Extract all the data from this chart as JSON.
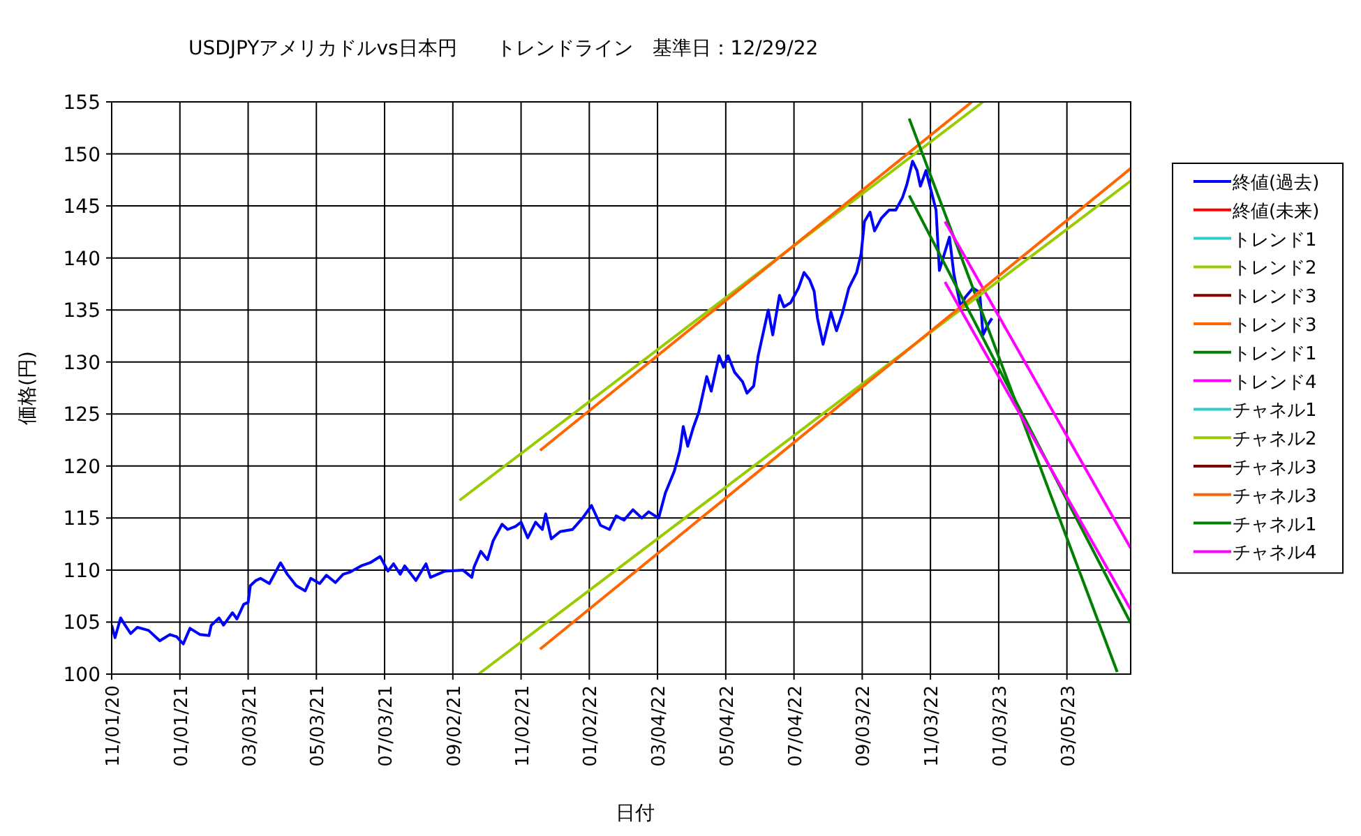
{
  "chart_data": {
    "type": "line",
    "title": "USDJPYアメリカドルvs日本円　　トレンドライン　基準日：12/29/22",
    "xlabel": "日付",
    "ylabel": "価格(円)",
    "grid": true,
    "legend": "right",
    "marker": "none",
    "line_style": "solid",
    "xlim": [
      "2020-11-01",
      "2023-05-01"
    ],
    "ylim": [
      100,
      155
    ],
    "yticks": [
      100,
      105,
      110,
      115,
      120,
      125,
      130,
      135,
      140,
      145,
      150,
      155
    ],
    "xticks": [
      {
        "value": "2020-11-01",
        "label": "11/01/20"
      },
      {
        "value": "2021-01-01",
        "label": "01/01/21"
      },
      {
        "value": "2021-03-03",
        "label": "03/03/21"
      },
      {
        "value": "2021-05-03",
        "label": "05/03/21"
      },
      {
        "value": "2021-07-03",
        "label": "07/03/21"
      },
      {
        "value": "2021-09-02",
        "label": "09/02/21"
      },
      {
        "value": "2021-11-02",
        "label": "11/02/21"
      },
      {
        "value": "2022-01-02",
        "label": "01/02/22"
      },
      {
        "value": "2022-03-04",
        "label": "03/04/22"
      },
      {
        "value": "2022-05-04",
        "label": "05/04/22"
      },
      {
        "value": "2022-07-04",
        "label": "07/04/22"
      },
      {
        "value": "2022-09-03",
        "label": "09/03/22"
      },
      {
        "value": "2022-11-03",
        "label": "11/03/22"
      },
      {
        "value": "2023-01-03",
        "label": "01/03/23"
      },
      {
        "value": "2023-03-05",
        "label": "03/05/23"
      }
    ],
    "series": [
      {
        "name": "終値(過去)",
        "color": "#0000ff",
        "x": [
          "2020-11-01",
          "2020-11-04",
          "2020-11-09",
          "2020-11-13",
          "2020-11-18",
          "2020-11-24",
          "2020-12-04",
          "2020-12-14",
          "2020-12-23",
          "2020-12-29",
          "2021-01-04",
          "2021-01-10",
          "2021-01-19",
          "2021-01-27",
          "2021-01-29",
          "2021-02-05",
          "2021-02-09",
          "2021-02-17",
          "2021-02-21",
          "2021-02-27",
          "2021-03-03",
          "2021-03-05",
          "2021-03-10",
          "2021-03-14",
          "2021-03-22",
          "2021-04-01",
          "2021-04-07",
          "2021-04-15",
          "2021-04-23",
          "2021-04-28",
          "2021-05-06",
          "2021-05-12",
          "2021-05-20",
          "2021-05-27",
          "2021-06-02",
          "2021-06-12",
          "2021-06-20",
          "2021-06-29",
          "2021-07-06",
          "2021-07-11",
          "2021-07-17",
          "2021-07-21",
          "2021-07-31",
          "2021-08-09",
          "2021-08-13",
          "2021-08-26",
          "2021-09-11",
          "2021-09-19",
          "2021-09-21",
          "2021-09-27",
          "2021-10-03",
          "2021-10-08",
          "2021-10-16",
          "2021-10-21",
          "2021-10-28",
          "2021-11-02",
          "2021-11-08",
          "2021-11-15",
          "2021-11-21",
          "2021-11-24",
          "2021-11-29",
          "2021-12-07",
          "2021-12-18",
          "2021-12-27",
          "2022-01-04",
          "2022-01-12",
          "2022-01-20",
          "2022-01-26",
          "2022-02-02",
          "2022-02-10",
          "2022-02-18",
          "2022-02-24",
          "2022-03-05",
          "2022-03-11",
          "2022-03-19",
          "2022-03-24",
          "2022-03-27",
          "2022-03-31",
          "2022-04-05",
          "2022-04-10",
          "2022-04-17",
          "2022-04-21",
          "2022-04-28",
          "2022-05-02",
          "2022-05-06",
          "2022-05-12",
          "2022-05-19",
          "2022-05-23",
          "2022-05-29",
          "2022-06-02",
          "2022-06-11",
          "2022-06-15",
          "2022-06-21",
          "2022-06-25",
          "2022-07-01",
          "2022-07-08",
          "2022-07-13",
          "2022-07-18",
          "2022-07-22",
          "2022-07-25",
          "2022-07-30",
          "2022-08-06",
          "2022-08-11",
          "2022-08-16",
          "2022-08-22",
          "2022-08-29",
          "2022-09-02",
          "2022-09-05",
          "2022-09-10",
          "2022-09-14",
          "2022-09-20",
          "2022-09-27",
          "2022-10-03",
          "2022-10-09",
          "2022-10-13",
          "2022-10-18",
          "2022-10-22",
          "2022-10-25",
          "2022-10-30",
          "2022-11-03",
          "2022-11-08",
          "2022-11-11",
          "2022-11-16",
          "2022-11-20",
          "2022-11-24",
          "2022-11-30",
          "2022-12-04",
          "2022-12-11",
          "2022-12-17",
          "2022-12-20",
          "2022-12-25",
          "2022-12-28"
        ],
        "values": [
          104.7,
          103.5,
          105.4,
          104.7,
          103.9,
          104.5,
          104.2,
          103.2,
          103.8,
          103.6,
          102.9,
          104.4,
          103.8,
          103.7,
          104.7,
          105.4,
          104.7,
          105.9,
          105.3,
          106.7,
          106.9,
          108.5,
          109.0,
          109.2,
          108.7,
          110.7,
          109.6,
          108.5,
          108.0,
          109.2,
          108.7,
          109.5,
          108.8,
          109.6,
          109.8,
          110.4,
          110.7,
          111.3,
          109.9,
          110.6,
          109.6,
          110.4,
          109.0,
          110.6,
          109.3,
          109.9,
          110.0,
          109.3,
          110.3,
          111.8,
          111.0,
          112.8,
          114.4,
          113.9,
          114.2,
          114.6,
          113.1,
          114.6,
          113.9,
          115.4,
          113.0,
          113.7,
          113.9,
          115.0,
          116.2,
          114.3,
          113.9,
          115.2,
          114.8,
          115.8,
          115.0,
          115.6,
          115.0,
          117.4,
          119.5,
          121.5,
          123.8,
          121.9,
          123.7,
          125.2,
          128.6,
          127.2,
          130.6,
          129.5,
          130.6,
          129.0,
          128.1,
          127.0,
          127.7,
          130.6,
          135.0,
          132.6,
          136.4,
          135.3,
          135.7,
          137.1,
          138.6,
          137.9,
          136.8,
          134.2,
          131.7,
          134.8,
          133.0,
          134.6,
          137.1,
          138.6,
          140.4,
          143.5,
          144.4,
          142.6,
          143.8,
          144.6,
          144.6,
          145.8,
          147.1,
          149.3,
          148.4,
          146.9,
          148.4,
          146.7,
          144.6,
          138.8,
          140.6,
          142.0,
          138.4,
          135.3,
          136.2,
          137.1,
          136.7,
          132.6,
          133.7,
          134.2
        ]
      },
      {
        "name": "終値(未来)",
        "color": "#ff0000"
      },
      {
        "name": "トレンド1",
        "color": "#33cccc"
      },
      {
        "name": "トレンド2",
        "color": "#99cc00",
        "x": [
          "2021-09-08",
          "2022-12-20"
        ],
        "values": [
          116.7,
          155
        ]
      },
      {
        "name": "トレンド3",
        "color": "#800000"
      },
      {
        "name": "トレンド3",
        "color": "#ff6600",
        "x": [
          "2021-11-19",
          "2022-12-10"
        ],
        "values": [
          121.5,
          155
        ]
      },
      {
        "name": "トレンド1",
        "color": "#008000",
        "x": [
          "2022-10-15",
          "2023-04-19"
        ],
        "values": [
          153.4,
          100.2
        ]
      },
      {
        "name": "トレンド4",
        "color": "#ff00ff",
        "x": [
          "2022-11-16",
          "2023-05-01"
        ],
        "values": [
          143.5,
          112.1
        ]
      },
      {
        "name": "チャネル1",
        "color": "#33cccc"
      },
      {
        "name": "チャネル2",
        "color": "#99cc00",
        "x": [
          "2021-09-25",
          "2023-05-01"
        ],
        "values": [
          100,
          147.4
        ]
      },
      {
        "name": "チャネル3",
        "color": "#800000"
      },
      {
        "name": "チャネル3",
        "color": "#ff6600",
        "x": [
          "2021-11-19",
          "2023-05-01"
        ],
        "values": [
          102.4,
          148.6
        ]
      },
      {
        "name": "チャネル1",
        "color": "#008000",
        "x": [
          "2022-10-15",
          "2023-05-01"
        ],
        "values": [
          146.0,
          104.9
        ]
      },
      {
        "name": "チャネル4",
        "color": "#ff00ff",
        "x": [
          "2022-11-16",
          "2023-05-01"
        ],
        "values": [
          137.7,
          106.2
        ]
      }
    ]
  }
}
